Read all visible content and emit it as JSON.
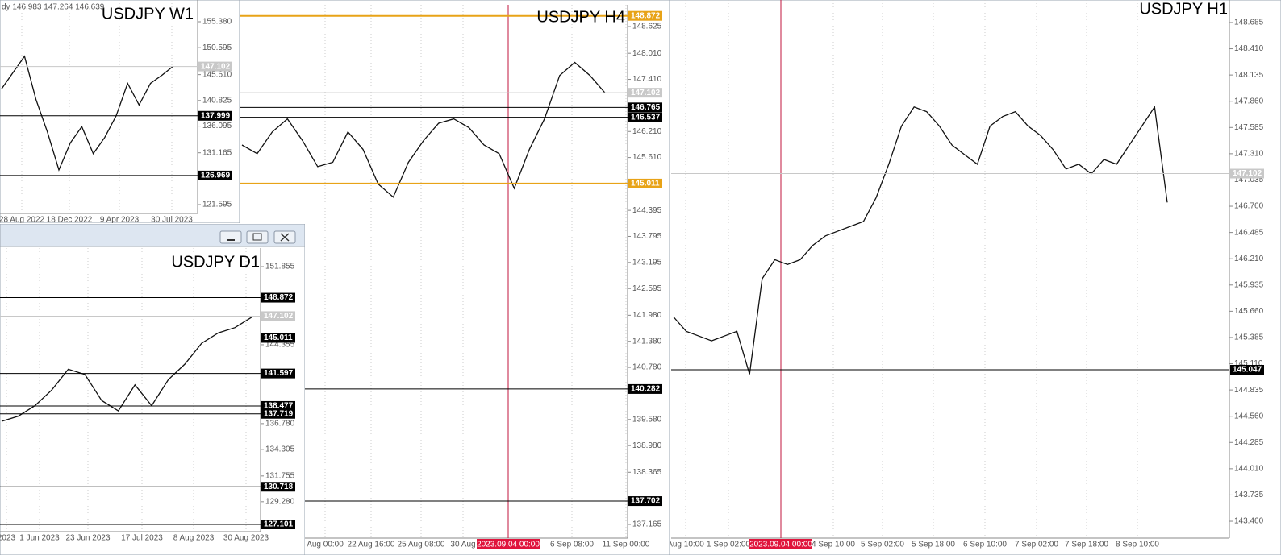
{
  "windows": [
    {
      "title": "USDJPY W1",
      "header": "dy 146.983 147.264 146.639",
      "ylim": [
        119.958,
        159.398
      ],
      "yticks": [
        {
          "value": 155.38,
          "label": "155.380"
        },
        150.595,
        {
          "value": 145.61,
          "label": "145.610"
        },
        140.825,
        136.095,
        131.165,
        121.595
      ],
      "levels": [
        {
          "value": 147.102,
          "color": "#c8c8c8"
        },
        {
          "value": 137.999,
          "color": "#000000"
        },
        {
          "value": 126.969,
          "color": "#000000"
        }
      ],
      "dates": [
        "28 Aug 2022",
        "18 Dec 2022",
        "9 Apr 2023",
        "30 Jul 2023"
      ],
      "closes": [
        143,
        146,
        149,
        141,
        135,
        128,
        133,
        136,
        131,
        134,
        138,
        144,
        140,
        144,
        145.5,
        147.2
      ]
    },
    {
      "title": "USDJPY H4",
      "ylim": [
        136.85,
        149.126
      ],
      "yticks": [
        148.625,
        {
          "value": 148.01,
          "label": "148.010"
        },
        {
          "value": 147.41,
          "label": "147.410"
        },
        {
          "value": 146.21,
          "label": "146.210"
        },
        {
          "value": 145.61,
          "label": "145.610"
        },
        144.395,
        143.795,
        143.195,
        142.595,
        {
          "value": 141.98,
          "label": "141.980"
        },
        {
          "value": 141.38,
          "label": "141.380"
        },
        {
          "value": 140.78,
          "label": "140.780"
        },
        {
          "value": 139.58,
          "label": "139.580"
        },
        {
          "value": 138.98,
          "label": "138.980"
        },
        138.365,
        137.165
      ],
      "levels": [
        {
          "value": 148.872,
          "color": "#e8a317"
        },
        {
          "value": 147.102,
          "color": "#c8c8c8"
        },
        {
          "value": 146.765,
          "color": "#000000"
        },
        {
          "value": 146.537,
          "color": "#000000"
        },
        {
          "value": 145.011,
          "color": "#e8a317"
        },
        {
          "value": 140.282,
          "color": "#000000"
        },
        {
          "value": 137.702,
          "color": "#000000"
        }
      ],
      "dates": [
        "Aug 00:00",
        "22 Aug 16:00",
        "25 Aug 08:00",
        "30 Aug",
        "6 Sep 08:00",
        "11 Sep 00:00"
      ],
      "cursor_date": "2023.09.04 00:00",
      "closes": [
        145.9,
        145.7,
        146.2,
        146.5,
        146.0,
        145.4,
        145.5,
        146.2,
        145.8,
        145.0,
        144.7,
        145.5,
        146.0,
        146.4,
        146.5,
        146.3,
        145.9,
        145.7,
        144.9,
        145.8,
        146.5,
        147.5,
        147.8,
        147.5,
        147.1
      ]
    },
    {
      "title": "USDJPY D1",
      "ylim": [
        126.405,
        153.634
      ],
      "yticks": [
        151.855,
        144.355,
        {
          "value": 136.78,
          "label": "136.780"
        },
        134.305,
        131.755,
        {
          "value": 129.28,
          "label": "129.280"
        }
      ],
      "levels": [
        {
          "value": 148.872,
          "color": "#000000"
        },
        {
          "value": 147.102,
          "color": "#c8c8c8"
        },
        {
          "value": 145.011,
          "color": "#000000"
        },
        {
          "value": 141.597,
          "color": "#000000"
        },
        {
          "value": 138.477,
          "color": "#000000"
        },
        {
          "value": 137.719,
          "color": "#000000"
        },
        {
          "value": 130.718,
          "color": "#000000"
        },
        {
          "value": 127.101,
          "color": "#000000"
        }
      ],
      "dates": [
        "2023",
        "1 Jun 2023",
        "23 Jun 2023",
        "17 Jul 2023",
        "8 Aug 2023",
        "30 Aug 2023"
      ],
      "closes": [
        137,
        137.5,
        138.5,
        140,
        142,
        141.5,
        139,
        138,
        140.5,
        138.5,
        141,
        142.5,
        144.5,
        145.5,
        146,
        147
      ]
    },
    {
      "title": "USDJPY H1",
      "ylim": [
        143.283,
        148.921
      ],
      "yticks": [
        148.685,
        {
          "value": 148.41,
          "label": "148.410"
        },
        148.135,
        {
          "value": 147.86,
          "label": "147.860"
        },
        147.585,
        {
          "value": 147.31,
          "label": "147.310"
        },
        147.035,
        {
          "value": 146.76,
          "label": "146.760"
        },
        146.485,
        {
          "value": 146.21,
          "label": "146.210"
        },
        145.935,
        {
          "value": 145.66,
          "label": "145.660"
        },
        145.385,
        {
          "value": 145.11,
          "label": "145.110"
        },
        144.835,
        {
          "value": 144.56,
          "label": "144.560"
        },
        144.285,
        {
          "value": 144.01,
          "label": "144.010"
        },
        143.735,
        {
          "value": 143.46,
          "label": "143.460"
        }
      ],
      "levels": [
        {
          "value": 147.102,
          "color": "#c8c8c8"
        },
        {
          "value": 145.047,
          "color": "#000000"
        }
      ],
      "dates": [
        "Aug 10:00",
        "1 Sep 02:00",
        "4 Sep 10:00",
        "5 Sep 02:00",
        "5 Sep 18:00",
        "6 Sep 10:00",
        "7 Sep 02:00",
        "7 Sep 18:00",
        "8 Sep 10:00"
      ],
      "cursor_date": "2023.09.04 00:00",
      "closes": [
        145.6,
        145.45,
        145.4,
        145.35,
        145.4,
        145.45,
        145.0,
        146.0,
        146.2,
        146.15,
        146.2,
        146.35,
        146.45,
        146.5,
        146.55,
        146.6,
        146.85,
        147.2,
        147.6,
        147.8,
        147.75,
        147.6,
        147.4,
        147.3,
        147.2,
        147.6,
        147.7,
        147.75,
        147.6,
        147.5,
        147.35,
        147.15,
        147.2,
        147.1,
        147.25,
        147.2,
        147.4,
        147.6,
        147.8,
        146.8
      ]
    }
  ]
}
